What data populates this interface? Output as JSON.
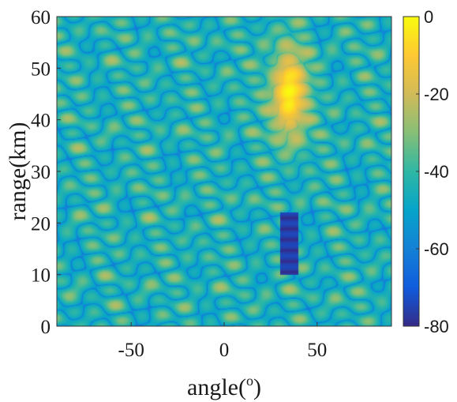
{
  "chart_data": {
    "type": "heatmap",
    "title": "",
    "xlabel": {
      "prefix": "angle(",
      "sup": "o",
      "suffix": ")"
    },
    "ylabel": "range(km)",
    "xlim": [
      -90,
      90
    ],
    "ylim": [
      0,
      60
    ],
    "x_ticks": [
      -50,
      0,
      50
    ],
    "y_ticks": [
      0,
      10,
      20,
      30,
      40,
      50,
      60
    ],
    "colorbar": {
      "colormap": "parula",
      "clim": [
        -80,
        0
      ],
      "ticks": [
        0,
        -20,
        -40,
        -60,
        -80
      ],
      "colors": [
        "#352a87",
        "#0f5cdd",
        "#1481d6",
        "#06a4ca",
        "#2eb7a4",
        "#87bf77",
        "#d1bb59",
        "#fec832",
        "#f9fb0e"
      ]
    },
    "background_level_db": -38,
    "features": [
      {
        "kind": "mainlobe_peak",
        "x": 35,
        "y": 45,
        "level_db": 0
      },
      {
        "kind": "suppressed_notch",
        "x_range": [
          30,
          40
        ],
        "y_range": [
          10,
          22
        ],
        "level_db": -80
      }
    ],
    "field_parameters": {
      "angle_modulation_deg": 12,
      "range_modulation_km": 3.2,
      "diagonal_slope": 0.35
    }
  }
}
